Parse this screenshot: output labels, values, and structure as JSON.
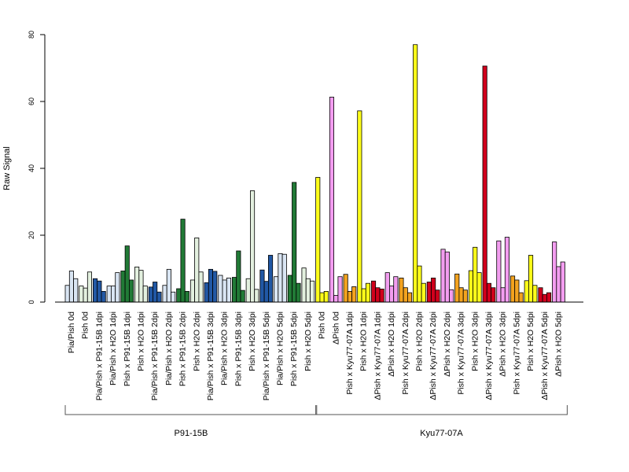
{
  "chart_data": {
    "type": "bar",
    "ylabel": "Raw Signal",
    "ylim": [
      0,
      80
    ],
    "yticks": [
      0,
      20,
      40,
      60,
      80
    ],
    "ytick_labels": [
      "0",
      "20",
      "40",
      "60",
      "80"
    ],
    "grid": false,
    "groups": [
      {
        "label": "P91-15B",
        "bars": [
          {
            "label": "Pia/Pish 0d",
            "color": "#d9e5f3",
            "values": [
              5.0,
              9.3,
              7.0
            ]
          },
          {
            "label": "Pish 0d",
            "color": "#e3f0df",
            "values": [
              4.8,
              4.2,
              9.0
            ]
          },
          {
            "label": "Pia/Pish x P91-15B 1dpi",
            "color": "#2158a5",
            "values": [
              7.0,
              6.3,
              3.2
            ]
          },
          {
            "label": "Pia/Pish x H2O 1dpi",
            "color": "#d9e5f3",
            "values": [
              4.8,
              4.8,
              8.8
            ]
          },
          {
            "label": "Pish x P91-15B 1dpi",
            "color": "#217a36",
            "values": [
              9.3,
              16.8,
              6.6
            ]
          },
          {
            "label": "Pish x H2O 1dpi",
            "color": "#e3f0df",
            "values": [
              10.5,
              9.5,
              4.8
            ]
          },
          {
            "label": "Pia/Pish x P91-15B 2dpi",
            "color": "#2158a5",
            "values": [
              4.5,
              6.0,
              3.0
            ]
          },
          {
            "label": "Pia/Pish x H2O 2dpi",
            "color": "#d9e5f3",
            "values": [
              5.0,
              9.8,
              3.0
            ]
          },
          {
            "label": "Pish x P91-15B 2dpi",
            "color": "#217a36",
            "values": [
              4.0,
              24.8,
              3.2
            ]
          },
          {
            "label": "Pish x H2O 2dpi",
            "color": "#e3f0df",
            "values": [
              6.6,
              19.2,
              9.0
            ]
          },
          {
            "label": "Pia/Pish x P91-15B 3dpi",
            "color": "#2158a5",
            "values": [
              5.8,
              9.8,
              9.2
            ]
          },
          {
            "label": "Pia/Pish x H2O 3dpi",
            "color": "#d9e5f3",
            "values": [
              8.0,
              6.6,
              7.2
            ]
          },
          {
            "label": "Pish x P91-15B 3dpi",
            "color": "#217a36",
            "values": [
              7.4,
              15.3,
              3.5
            ]
          },
          {
            "label": "Pish x H2O 3dpi",
            "color": "#e3f0df",
            "values": [
              7.0,
              33.3,
              3.8
            ]
          },
          {
            "label": "Pia/Pish x P91-15B 5dpi",
            "color": "#2158a5",
            "values": [
              9.6,
              6.2,
              14.0
            ]
          },
          {
            "label": "Pia/Pish x H2O 5dpi",
            "color": "#d9e5f3",
            "values": [
              7.6,
              14.5,
              14.3
            ]
          },
          {
            "label": "Pish x P91-15B 5dpi",
            "color": "#217a36",
            "values": [
              8.0,
              35.8,
              5.6
            ]
          },
          {
            "label": "Pish x H2O 5dpi",
            "color": "#e3f0df",
            "values": [
              10.2,
              7.0,
              6.3
            ]
          }
        ]
      },
      {
        "label": "Kyu77-07A",
        "bars": [
          {
            "label": "Pish 0d",
            "color": "#ffff1a",
            "values": [
              37.3,
              2.8,
              3.2
            ]
          },
          {
            "label": "ΔPish 0d",
            "color": "#f39df0",
            "values": [
              61.3,
              2.0,
              7.6
            ]
          },
          {
            "label": "Pish x Kyu77-07A 1dpi",
            "color": "#f3a31f",
            "values": [
              8.3,
              3.2,
              4.6
            ]
          },
          {
            "label": "Pish x H2O 1dpi",
            "color": "#ffff1a",
            "values": [
              57.2,
              4.0,
              5.6
            ]
          },
          {
            "label": "ΔPish x Kyu77-07A 1dpi",
            "color": "#d1001c",
            "values": [
              6.3,
              4.3,
              3.9
            ]
          },
          {
            "label": "ΔPish x H2O 1dpi",
            "color": "#f39df0",
            "values": [
              8.8,
              4.8,
              7.6
            ]
          },
          {
            "label": "Pish x Kyu77-07A 2dpi",
            "color": "#f3a31f",
            "values": [
              7.2,
              4.3,
              2.8
            ]
          },
          {
            "label": "Pish x H2O 2dpi",
            "color": "#ffff1a",
            "values": [
              77.0,
              10.8,
              5.6
            ]
          },
          {
            "label": "ΔPish x Kyu77-07A 2dpi",
            "color": "#d1001c",
            "values": [
              6.0,
              7.2,
              3.6
            ]
          },
          {
            "label": "ΔPish x H2O 2dpi",
            "color": "#f39df0",
            "values": [
              15.8,
              15.0,
              3.7
            ]
          },
          {
            "label": "Pish x Kyu77-07A 3dpi",
            "color": "#f3a31f",
            "values": [
              8.4,
              4.3,
              3.6
            ]
          },
          {
            "label": "Pish x H2O 3dpi",
            "color": "#ffff1a",
            "values": [
              9.4,
              16.4,
              8.8
            ]
          },
          {
            "label": "ΔPish x Kyu77-07A 3dpi",
            "color": "#d1001c",
            "values": [
              70.6,
              5.6,
              4.3
            ]
          },
          {
            "label": "ΔPish x H2O 3dpi",
            "color": "#f39df0",
            "values": [
              18.3,
              4.3,
              19.4
            ]
          },
          {
            "label": "Pish x Kyu77-07A 5dpi",
            "color": "#f3a31f",
            "values": [
              7.8,
              6.6,
              2.8
            ]
          },
          {
            "label": "Pish x H2O 5dpi",
            "color": "#ffff1a",
            "values": [
              6.4,
              14.0,
              5.0
            ]
          },
          {
            "label": "ΔPish x Kyu77-07A 5dpi",
            "color": "#d1001c",
            "values": [
              4.3,
              2.3,
              2.8
            ]
          },
          {
            "label": "ΔPish x H2O 5dpi",
            "color": "#f39df0",
            "values": [
              18.0,
              10.6,
              12.0
            ]
          }
        ]
      }
    ]
  }
}
